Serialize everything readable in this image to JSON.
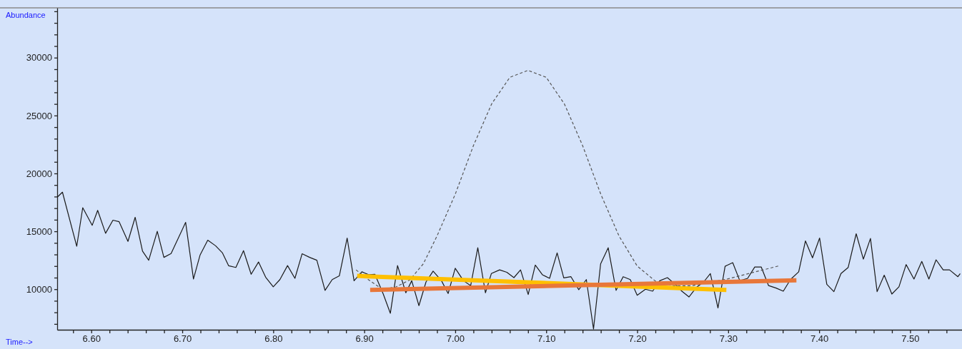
{
  "chart_data": {
    "type": "line",
    "xlabel": "Time-->",
    "ylabel": "Abundance",
    "xlim": [
      6.5625,
      7.557
    ],
    "ylim": [
      6500,
      34300
    ],
    "xticks": [
      {
        "value": 6.58,
        "label": null
      },
      {
        "value": 6.6,
        "label": "6.60"
      },
      {
        "value": 6.62,
        "label": null
      },
      {
        "value": 6.64,
        "label": null
      },
      {
        "value": 6.66,
        "label": null
      },
      {
        "value": 6.68,
        "label": null
      },
      {
        "value": 6.7,
        "label": "6.70"
      },
      {
        "value": 6.72,
        "label": null
      },
      {
        "value": 6.74,
        "label": null
      },
      {
        "value": 6.76,
        "label": null
      },
      {
        "value": 6.78,
        "label": null
      },
      {
        "value": 6.8,
        "label": "6.80"
      },
      {
        "value": 6.82,
        "label": null
      },
      {
        "value": 6.84,
        "label": null
      },
      {
        "value": 6.86,
        "label": null
      },
      {
        "value": 6.88,
        "label": null
      },
      {
        "value": 6.9,
        "label": "6.90"
      },
      {
        "value": 6.92,
        "label": null
      },
      {
        "value": 6.94,
        "label": null
      },
      {
        "value": 6.96,
        "label": null
      },
      {
        "value": 6.98,
        "label": null
      },
      {
        "value": 7.0,
        "label": "7.00"
      },
      {
        "value": 7.02,
        "label": null
      },
      {
        "value": 7.04,
        "label": null
      },
      {
        "value": 7.06,
        "label": null
      },
      {
        "value": 7.08,
        "label": null
      },
      {
        "value": 7.1,
        "label": "7.10"
      },
      {
        "value": 7.12,
        "label": null
      },
      {
        "value": 7.14,
        "label": null
      },
      {
        "value": 7.16,
        "label": null
      },
      {
        "value": 7.18,
        "label": null
      },
      {
        "value": 7.2,
        "label": "7.20"
      },
      {
        "value": 7.22,
        "label": null
      },
      {
        "value": 7.24,
        "label": null
      },
      {
        "value": 7.26,
        "label": null
      },
      {
        "value": 7.28,
        "label": null
      },
      {
        "value": 7.3,
        "label": "7.30"
      },
      {
        "value": 7.32,
        "label": null
      },
      {
        "value": 7.34,
        "label": null
      },
      {
        "value": 7.36,
        "label": null
      },
      {
        "value": 7.38,
        "label": null
      },
      {
        "value": 7.4,
        "label": "7.40"
      },
      {
        "value": 7.42,
        "label": null
      },
      {
        "value": 7.44,
        "label": null
      },
      {
        "value": 7.46,
        "label": null
      },
      {
        "value": 7.48,
        "label": null
      },
      {
        "value": 7.5,
        "label": "7.50"
      },
      {
        "value": 7.52,
        "label": null
      },
      {
        "value": 7.54,
        "label": null
      }
    ],
    "yticks": [
      {
        "value": 7000,
        "label": null
      },
      {
        "value": 8000,
        "label": null
      },
      {
        "value": 9000,
        "label": null
      },
      10000,
      {
        "value": 11000,
        "label": null
      },
      {
        "value": 12000,
        "label": null
      },
      {
        "value": 13000,
        "label": null
      },
      {
        "value": 14000,
        "label": null
      },
      15000,
      {
        "value": 16000,
        "label": null
      },
      {
        "value": 17000,
        "label": null
      },
      {
        "value": 18000,
        "label": null
      },
      {
        "value": 19000,
        "label": null
      },
      20000,
      {
        "value": 21000,
        "label": null
      },
      {
        "value": 22000,
        "label": null
      },
      {
        "value": 23000,
        "label": null
      },
      {
        "value": 24000,
        "label": null
      },
      25000,
      {
        "value": 26000,
        "label": null
      },
      {
        "value": 27000,
        "label": null
      },
      {
        "value": 28000,
        "label": null
      },
      {
        "value": 29000,
        "label": null
      },
      30000,
      {
        "value": 31000,
        "label": null
      },
      {
        "value": 32000,
        "label": null
      },
      {
        "value": 33000,
        "label": null
      },
      {
        "value": 34000,
        "label": null
      }
    ],
    "series": [
      {
        "color": "#1a1a1a",
        "line_style": "solid",
        "x": [
          6.5626,
          6.5683,
          6.584,
          6.5906,
          6.601,
          6.607,
          6.6157,
          6.6238,
          6.6306,
          6.6403,
          6.6482,
          6.6563,
          6.6631,
          6.6725,
          6.6798,
          6.6877,
          6.7037,
          6.7123,
          6.7196,
          6.728,
          6.7366,
          6.7442,
          6.751,
          6.7589,
          6.7673,
          6.7757,
          6.7838,
          6.7916,
          6.8,
          6.8073,
          6.8157,
          6.8238,
          6.8317,
          6.84,
          6.8479,
          6.8569,
          6.8648,
          6.8726,
          6.8812,
          6.8888,
          6.8974,
          6.9052,
          6.9117,
          6.9209,
          6.9287,
          6.9366,
          6.9457,
          6.9522,
          6.9601,
          6.9679,
          6.9757,
          6.9849,
          6.9922,
          7.0,
          7.0091,
          7.017,
          7.0248,
          7.0332,
          7.0397,
          7.0488,
          7.0567,
          7.0645,
          7.0718,
          7.0802,
          7.088,
          7.0958,
          7.1037,
          7.112,
          7.1193,
          7.1272,
          7.1358,
          7.1441,
          7.152,
          7.1598,
          7.1681,
          7.1768,
          7.1846,
          7.1924,
          7.2,
          7.2091,
          7.217,
          7.2248,
          7.2332,
          7.2418,
          7.2491,
          7.2569,
          7.2653,
          7.2731,
          7.2804,
          7.2888,
          7.2966,
          7.305,
          7.3128,
          7.3214,
          7.3292,
          7.3363,
          7.3444,
          7.3527,
          7.3606,
          7.3684,
          7.3775,
          7.3849,
          7.3927,
          7.4005,
          7.4084,
          7.4162,
          7.424,
          7.4319,
          7.4407,
          7.4486,
          7.4564,
          7.4637,
          7.4715,
          7.4799,
          7.4877,
          7.4956,
          7.5042,
          7.5128,
          7.5206,
          7.5285,
          7.5363,
          7.5433,
          7.5525,
          7.555
        ],
        "values": [
          17950,
          18380,
          13710,
          17040,
          15520,
          16810,
          14830,
          15960,
          15830,
          14130,
          16210,
          13290,
          12500,
          15000,
          12750,
          13080,
          15770,
          10880,
          12960,
          14230,
          13750,
          13130,
          12020,
          11880,
          13330,
          11290,
          12350,
          11040,
          10210,
          10830,
          12040,
          10940,
          13060,
          12750,
          12500,
          9900,
          10830,
          11150,
          14420,
          10730,
          11500,
          11250,
          11290,
          9580,
          7920,
          12040,
          9690,
          10730,
          8580,
          10630,
          11560,
          10730,
          9630,
          11810,
          10730,
          10310,
          13580,
          9690,
          11350,
          11670,
          11460,
          11000,
          11670,
          9540,
          12080,
          11250,
          10940,
          13130,
          10980,
          11080,
          9960,
          10830,
          6560,
          12190,
          13580,
          9900,
          11080,
          10830,
          9480,
          10000,
          9830,
          10730,
          11000,
          10420,
          9830,
          9330,
          10170,
          10630,
          11350,
          8380,
          11980,
          12290,
          10730,
          10940,
          11920,
          11920,
          10310,
          10100,
          9830,
          10830,
          11500,
          14170,
          12710,
          14420,
          10420,
          9790,
          11350,
          11880,
          14790,
          12600,
          14380,
          9790,
          11210,
          9580,
          10210,
          12130,
          10880,
          12400,
          10880,
          12540,
          11670,
          11670,
          11080,
          11350
        ]
      },
      {
        "color": "#555555",
        "line_style": "dashed",
        "x": [
          6.891,
          6.905,
          6.92,
          6.935,
          6.95,
          6.965,
          6.98,
          7.0,
          7.02,
          7.04,
          7.06,
          7.08,
          7.1,
          7.12,
          7.14,
          7.16,
          7.18,
          7.2,
          7.22,
          7.24,
          7.26,
          7.3,
          7.355
        ],
        "values": [
          11670,
          10800,
          10000,
          10200,
          10800,
          12200,
          14600,
          18200,
          22400,
          26000,
          28300,
          28900,
          28300,
          26000,
          22400,
          18200,
          14600,
          12000,
          10700,
          10300,
          10300,
          10900,
          12000
        ]
      },
      {
        "color": "#ffc000",
        "line_style": "solid",
        "x": [
          6.8922,
          7.298
        ],
        "values": [
          11150,
          9940
        ]
      },
      {
        "color": "#e8773a",
        "line_style": "solid",
        "x": [
          6.9065,
          7.375
        ],
        "values": [
          9940,
          10770
        ]
      }
    ]
  }
}
